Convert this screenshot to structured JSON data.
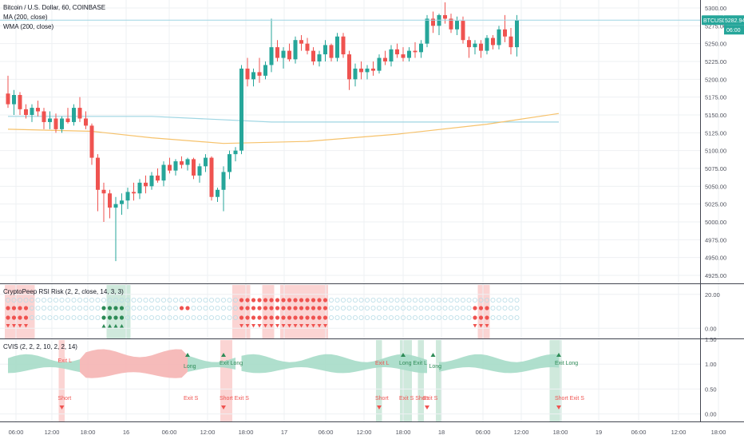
{
  "header": {
    "symbol_title": "Bitcoin / U.S. Dollar, 60, COINBASE",
    "study1": "MA (200, close)",
    "study2": "WMA (200, close)"
  },
  "colors": {
    "up": "#26a69a",
    "down": "#ef5350",
    "ma": "#9fd6e3",
    "wma": "#f6c26b",
    "grid": "#eef0f3",
    "pane_border": "#434651",
    "bg_red": "#fbd4d3",
    "bg_green": "#cfe9dc",
    "cloud_green": "#a6dcc8",
    "cloud_red": "#f5b4b3",
    "circle_empty": "#b8dce6",
    "label_text": "#ffffff"
  },
  "price_labels": {
    "symbol": "BTCUSD",
    "last_price": "5282.94",
    "countdown": "06:00"
  },
  "chart_data": [
    {
      "type": "candlestick",
      "pane": "main",
      "ylim": [
        4925,
        5300
      ],
      "y_ticks": [
        "5300.00",
        "5275.00",
        "5250.00",
        "5225.00",
        "5200.00",
        "5175.00",
        "5150.00",
        "5125.00",
        "5100.00",
        "5075.00",
        "5050.00",
        "5025.00",
        "5000.00",
        "4975.00",
        "4950.00",
        "4925.00"
      ],
      "ohlc": [
        [
          5180,
          5205,
          5160,
          5165
        ],
        [
          5165,
          5185,
          5150,
          5178
        ],
        [
          5178,
          5182,
          5150,
          5158
        ],
        [
          5158,
          5165,
          5145,
          5150
        ],
        [
          5150,
          5165,
          5140,
          5160
        ],
        [
          5160,
          5170,
          5148,
          5155
        ],
        [
          5155,
          5160,
          5130,
          5140
        ],
        [
          5140,
          5155,
          5130,
          5145
        ],
        [
          5145,
          5152,
          5125,
          5130
        ],
        [
          5130,
          5148,
          5125,
          5145
        ],
        [
          5145,
          5160,
          5138,
          5140
        ],
        [
          5140,
          5165,
          5135,
          5160
        ],
        [
          5160,
          5175,
          5140,
          5145
        ],
        [
          5145,
          5155,
          5130,
          5135
        ],
        [
          5135,
          5138,
          5080,
          5090
        ],
        [
          5090,
          5095,
          5015,
          5045
        ],
        [
          5045,
          5055,
          5000,
          5040
        ],
        [
          5040,
          5045,
          5005,
          5020
        ],
        [
          5020,
          5035,
          4945,
          5025
        ],
        [
          5025,
          5040,
          5010,
          5030
        ],
        [
          5030,
          5048,
          5018,
          5042
        ],
        [
          5042,
          5055,
          5030,
          5040
        ],
        [
          5040,
          5060,
          5032,
          5055
        ],
        [
          5055,
          5065,
          5040,
          5050
        ],
        [
          5050,
          5070,
          5045,
          5065
        ],
        [
          5065,
          5075,
          5055,
          5058
        ],
        [
          5058,
          5085,
          5050,
          5080
        ],
        [
          5080,
          5090,
          5068,
          5072
        ],
        [
          5072,
          5088,
          5065,
          5085
        ],
        [
          5085,
          5092,
          5075,
          5080
        ],
        [
          5080,
          5090,
          5072,
          5088
        ],
        [
          5088,
          5090,
          5060,
          5065
        ],
        [
          5065,
          5082,
          5055,
          5078
        ],
        [
          5078,
          5095,
          5070,
          5090
        ],
        [
          5090,
          5092,
          5030,
          5035
        ],
        [
          5035,
          5048,
          5028,
          5045
        ],
        [
          5045,
          5078,
          5015,
          5070
        ],
        [
          5070,
          5100,
          5060,
          5095
        ],
        [
          5095,
          5105,
          5085,
          5100
        ],
        [
          5100,
          5220,
          5095,
          5215
        ],
        [
          5215,
          5230,
          5190,
          5200
        ],
        [
          5200,
          5215,
          5190,
          5210
        ],
        [
          5210,
          5230,
          5195,
          5205
        ],
        [
          5205,
          5225,
          5200,
          5220
        ],
        [
          5220,
          5285,
          5210,
          5245
        ],
        [
          5245,
          5255,
          5225,
          5230
        ],
        [
          5230,
          5245,
          5215,
          5240
        ],
        [
          5240,
          5250,
          5225,
          5228
        ],
        [
          5228,
          5260,
          5222,
          5255
        ],
        [
          5255,
          5262,
          5240,
          5250
        ],
        [
          5250,
          5258,
          5235,
          5240
        ],
        [
          5240,
          5245,
          5220,
          5225
        ],
        [
          5225,
          5240,
          5218,
          5235
        ],
        [
          5235,
          5255,
          5225,
          5248
        ],
        [
          5248,
          5250,
          5225,
          5230
        ],
        [
          5230,
          5265,
          5225,
          5260
        ],
        [
          5260,
          5265,
          5230,
          5235
        ],
        [
          5235,
          5240,
          5185,
          5200
        ],
        [
          5200,
          5222,
          5190,
          5215
        ],
        [
          5215,
          5225,
          5200,
          5210
        ],
        [
          5210,
          5220,
          5200,
          5215
        ],
        [
          5215,
          5225,
          5205,
          5212
        ],
        [
          5212,
          5235,
          5208,
          5230
        ],
        [
          5230,
          5240,
          5220,
          5225
        ],
        [
          5225,
          5248,
          5218,
          5242
        ],
        [
          5242,
          5250,
          5230,
          5235
        ],
        [
          5235,
          5245,
          5225,
          5230
        ],
        [
          5230,
          5245,
          5225,
          5240
        ],
        [
          5240,
          5252,
          5230,
          5238
        ],
        [
          5238,
          5255,
          5230,
          5250
        ],
        [
          5250,
          5290,
          5245,
          5285
        ],
        [
          5285,
          5295,
          5265,
          5275
        ],
        [
          5275,
          5292,
          5262,
          5290
        ],
        [
          5290,
          5308,
          5278,
          5285
        ],
        [
          5285,
          5292,
          5265,
          5270
        ],
        [
          5270,
          5288,
          5262,
          5282
        ],
        [
          5282,
          5288,
          5250,
          5255
        ],
        [
          5255,
          5260,
          5230,
          5245
        ],
        [
          5245,
          5255,
          5235,
          5250
        ],
        [
          5250,
          5255,
          5230,
          5240
        ],
        [
          5240,
          5262,
          5235,
          5258
        ],
        [
          5258,
          5262,
          5242,
          5248
        ],
        [
          5248,
          5275,
          5242,
          5270
        ],
        [
          5270,
          5290,
          5252,
          5260
        ],
        [
          5260,
          5272,
          5235,
          5245
        ],
        [
          5245,
          5290,
          5232,
          5283
        ]
      ],
      "ma_200": [
        [
          0,
          5148
        ],
        [
          24,
          5148
        ],
        [
          44,
          5140
        ],
        [
          92,
          5140
        ]
      ],
      "wma_200": [
        [
          0,
          5130
        ],
        [
          14,
          5127
        ],
        [
          24,
          5118
        ],
        [
          36,
          5110
        ],
        [
          50,
          5113
        ],
        [
          65,
          5123
        ],
        [
          80,
          5137
        ],
        [
          92,
          5152
        ]
      ],
      "last_price": 5282.94
    },
    {
      "type": "dot-matrix",
      "pane": "CryptoPeep RSI Risk (2, 2, close, 14, 3, 3)",
      "ylim": [
        -6,
        26
      ],
      "y_ticks": [
        "20.00",
        "0.00"
      ]
    },
    {
      "type": "area",
      "pane": "CVIS (2, 2, 2, 10, 2, 2, 14)",
      "ylim": [
        -0.15,
        1.5
      ],
      "y_ticks": [
        "1.50",
        "1.00",
        "0.50",
        "0.00"
      ]
    }
  ],
  "time_axis": {
    "labels": [
      "06:00",
      "12:00",
      "18:00",
      "16",
      "06:00",
      "12:00",
      "18:00",
      "17",
      "06:00",
      "12:00",
      "18:00",
      "18",
      "06:00",
      "12:00",
      "18:00",
      "19",
      "06:00",
      "12:00",
      "18:00"
    ]
  },
  "signals": {
    "long": "Long",
    "short": "Short",
    "exit_long": "Exit L",
    "exit_short": "Exit S",
    "exit_long_alt": "Exit Long",
    "short_exit_s": "Short Exit S",
    "long_exit_s": "Long Exit S",
    "long_exit_l": "Long Exit L",
    "exit_short_alt": "Exit S Short"
  }
}
